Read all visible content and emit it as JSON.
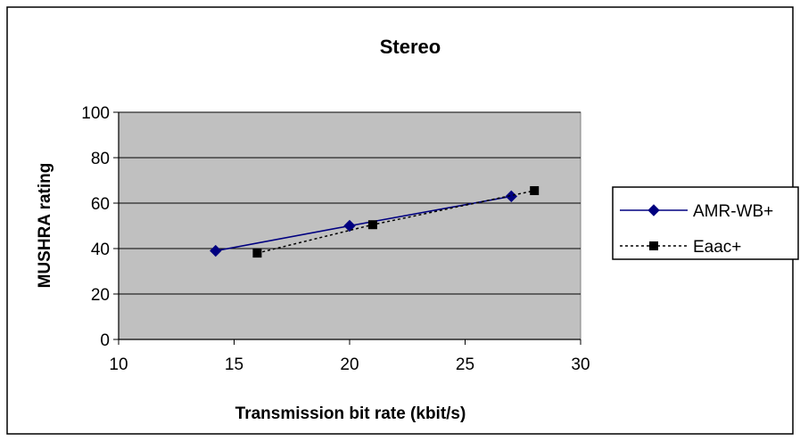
{
  "chart_data": {
    "type": "line",
    "title": "Stereo",
    "xlabel": "Transmission bit rate (kbit/s)",
    "ylabel": "MUSHRA rating",
    "xlim": [
      10,
      30
    ],
    "ylim": [
      0,
      100
    ],
    "xticks": [
      10,
      15,
      20,
      25,
      30
    ],
    "yticks": [
      0,
      20,
      40,
      60,
      80,
      100
    ],
    "grid": "horizontal",
    "legend_position": "right",
    "plot_background": "#c0c0c0",
    "series": [
      {
        "name": "AMR-WB+",
        "color": "#000080",
        "line_style": "solid",
        "marker": "diamond",
        "x": [
          14.2,
          20,
          27
        ],
        "y": [
          39,
          50,
          63
        ]
      },
      {
        "name": "Eaac+",
        "color": "#000000",
        "line_style": "dotted",
        "marker": "square",
        "x": [
          16,
          21,
          28
        ],
        "y": [
          38,
          50.5,
          65.5
        ]
      }
    ]
  }
}
